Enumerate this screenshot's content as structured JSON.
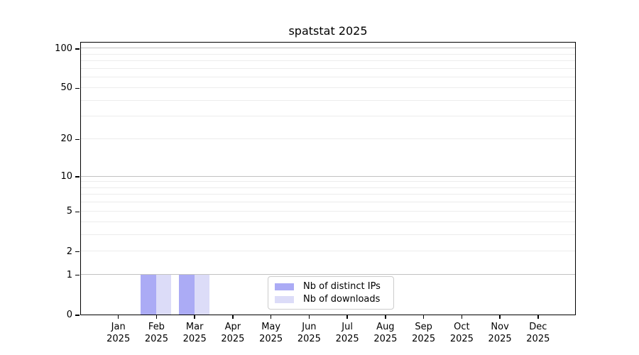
{
  "chart_data": {
    "type": "bar",
    "title": "spatstat 2025",
    "categories": [
      "Jan 2025",
      "Feb 2025",
      "Mar 2025",
      "Apr 2025",
      "May 2025",
      "Jun 2025",
      "Jul 2025",
      "Aug 2025",
      "Sep 2025",
      "Oct 2025",
      "Nov 2025",
      "Dec 2025"
    ],
    "series": [
      {
        "name": "Nb of distinct IPs",
        "color": "#ababf5",
        "values": [
          0,
          1,
          1,
          0,
          0,
          0,
          0,
          0,
          0,
          0,
          0,
          0
        ]
      },
      {
        "name": "Nb of downloads",
        "color": "#dcdcf8",
        "values": [
          0,
          1,
          1,
          0,
          0,
          0,
          0,
          0,
          0,
          0,
          0,
          0
        ]
      }
    ],
    "xlabel": "",
    "ylabel": "",
    "yscale": "log1p",
    "ylim": [
      0,
      115
    ],
    "grid": true,
    "legend_position": "lower center",
    "y_axis": {
      "tick_values": [
        0,
        1,
        2,
        5,
        10,
        20,
        50,
        100
      ],
      "gridlines_emphasis": [
        1,
        10,
        100
      ],
      "gridlines_light": [
        2,
        3,
        4,
        5,
        6,
        7,
        8,
        9,
        20,
        30,
        40,
        50,
        60,
        70,
        80,
        90
      ]
    }
  },
  "colors": {
    "axis": "#000000",
    "grid_major": "#c2c2c2",
    "grid_minor": "#ececec",
    "legend_border": "#cccccc",
    "background": "#ffffff"
  }
}
